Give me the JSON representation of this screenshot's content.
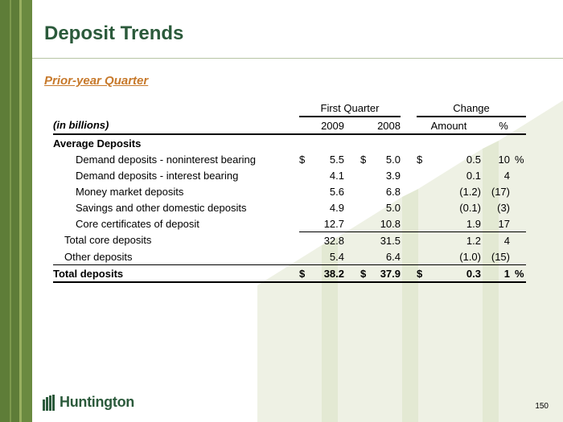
{
  "title": "Deposit Trends",
  "subtitle": "Prior-year Quarter",
  "table": {
    "group_headers": {
      "first_quarter": "First Quarter",
      "change": "Change"
    },
    "col_headers": {
      "units": "(in billions)",
      "y2009": "2009",
      "y2008": "2008",
      "amount": "Amount",
      "pct": "%"
    },
    "section_label": "Average Deposits",
    "rows": [
      {
        "label": "Demand deposits - noninterest bearing",
        "c1": "$",
        "v2009": "5.5",
        "c2": "$",
        "v2008": "5.0",
        "c3": "$",
        "amount": "0.5",
        "pct": "10",
        "pct_sign": "%"
      },
      {
        "label": "Demand deposits - interest bearing",
        "c1": "",
        "v2009": "4.1",
        "c2": "",
        "v2008": "3.9",
        "c3": "",
        "amount": "0.1",
        "pct": "4",
        "pct_sign": ""
      },
      {
        "label": "Money market deposits",
        "c1": "",
        "v2009": "5.6",
        "c2": "",
        "v2008": "6.8",
        "c3": "",
        "amount": "(1.2)",
        "pct": "(17)",
        "pct_sign": ""
      },
      {
        "label": "Savings and other domestic deposits",
        "c1": "",
        "v2009": "4.9",
        "c2": "",
        "v2008": "5.0",
        "c3": "",
        "amount": "(0.1)",
        "pct": "(3)",
        "pct_sign": ""
      },
      {
        "label": "Core certificates of deposit",
        "c1": "",
        "v2009": "12.7",
        "c2": "",
        "v2008": "10.8",
        "c3": "",
        "amount": "1.9",
        "pct": "17",
        "pct_sign": ""
      },
      {
        "label": "Total core deposits",
        "c1": "",
        "v2009": "32.8",
        "c2": "",
        "v2008": "31.5",
        "c3": "",
        "amount": "1.2",
        "pct": "4",
        "pct_sign": ""
      },
      {
        "label": "Other deposits",
        "c1": "",
        "v2009": "5.4",
        "c2": "",
        "v2008": "6.4",
        "c3": "",
        "amount": "(1.0)",
        "pct": "(15)",
        "pct_sign": ""
      },
      {
        "label": "Total deposits",
        "c1": "$",
        "v2009": "38.2",
        "c2": "$",
        "v2008": "37.9",
        "c3": "$",
        "amount": "0.3",
        "pct": "1",
        "pct_sign": "%"
      }
    ]
  },
  "logo_text": "Huntington",
  "page_number": "150",
  "colors": {
    "title": "#2b5a3b",
    "subtitle": "#c7792b",
    "stripe": "#5e7d38",
    "watermark": "#eef1e4"
  }
}
